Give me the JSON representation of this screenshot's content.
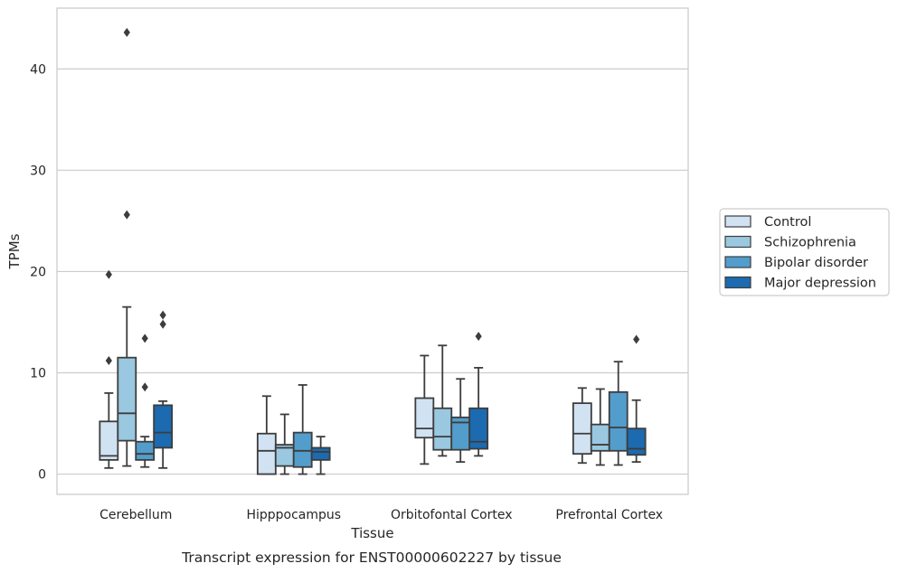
{
  "chart_data": {
    "type": "box",
    "xlabel": "Tissue",
    "ylabel": "TPMs",
    "caption": "Transcript expression for ENST00000602227 by tissue",
    "ylim": [
      -2,
      46
    ],
    "yticks": [
      0,
      10,
      20,
      30,
      40
    ],
    "ytick_labels": [
      "0",
      "10",
      "20",
      "30",
      "40"
    ],
    "grid": "horizontal",
    "legend_position": "right",
    "categories": [
      "Cerebellum",
      "Hipppocampus",
      "Orbitofontal Cortex",
      "Prefrontal Cortex"
    ],
    "series": [
      {
        "name": "Control",
        "color": "#d1e2f2",
        "boxes": [
          {
            "whislo": 0.6,
            "q1": 1.4,
            "med": 1.8,
            "q3": 5.2,
            "whishi": 8.0,
            "fliers": [
              11.2,
              19.7
            ]
          },
          {
            "whislo": 0.0,
            "q1": 0.0,
            "med": 2.3,
            "q3": 4.0,
            "whishi": 7.7,
            "fliers": []
          },
          {
            "whislo": 1.0,
            "q1": 3.6,
            "med": 4.5,
            "q3": 7.5,
            "whishi": 11.7,
            "fliers": []
          },
          {
            "whislo": 1.1,
            "q1": 2.0,
            "med": 4.0,
            "q3": 7.0,
            "whishi": 8.5,
            "fliers": []
          }
        ]
      },
      {
        "name": "Schizophrenia",
        "color": "#9ac8e0",
        "boxes": [
          {
            "whislo": 0.8,
            "q1": 3.3,
            "med": 6.0,
            "q3": 11.5,
            "whishi": 16.5,
            "fliers": [
              25.6,
              43.6
            ]
          },
          {
            "whislo": 0.0,
            "q1": 0.8,
            "med": 2.6,
            "q3": 2.9,
            "whishi": 5.9,
            "fliers": []
          },
          {
            "whislo": 1.8,
            "q1": 2.4,
            "med": 3.7,
            "q3": 6.5,
            "whishi": 12.7,
            "fliers": []
          },
          {
            "whislo": 0.9,
            "q1": 2.3,
            "med": 2.9,
            "q3": 4.9,
            "whishi": 8.4,
            "fliers": []
          }
        ]
      },
      {
        "name": "Bipolar disorder",
        "color": "#529dcc",
        "boxes": [
          {
            "whislo": 0.7,
            "q1": 1.4,
            "med": 2.0,
            "q3": 3.2,
            "whishi": 3.7,
            "fliers": [
              8.6,
              13.4
            ]
          },
          {
            "whislo": 0.0,
            "q1": 0.7,
            "med": 2.3,
            "q3": 4.1,
            "whishi": 8.8,
            "fliers": []
          },
          {
            "whislo": 1.2,
            "q1": 2.4,
            "med": 5.1,
            "q3": 5.6,
            "whishi": 9.4,
            "fliers": []
          },
          {
            "whislo": 0.9,
            "q1": 2.3,
            "med": 4.6,
            "q3": 8.1,
            "whishi": 11.1,
            "fliers": []
          }
        ]
      },
      {
        "name": "Major depression",
        "color": "#1c6aaf",
        "boxes": [
          {
            "whislo": 0.6,
            "q1": 2.6,
            "med": 4.1,
            "q3": 6.8,
            "whishi": 7.2,
            "fliers": [
              14.8,
              15.7
            ]
          },
          {
            "whislo": 0.0,
            "q1": 1.4,
            "med": 2.2,
            "q3": 2.6,
            "whishi": 3.7,
            "fliers": []
          },
          {
            "whislo": 1.8,
            "q1": 2.5,
            "med": 3.2,
            "q3": 6.5,
            "whishi": 10.5,
            "fliers": [
              13.6
            ]
          },
          {
            "whislo": 1.2,
            "q1": 1.9,
            "med": 2.5,
            "q3": 4.5,
            "whishi": 7.3,
            "fliers": [
              13.3
            ]
          }
        ]
      }
    ]
  }
}
